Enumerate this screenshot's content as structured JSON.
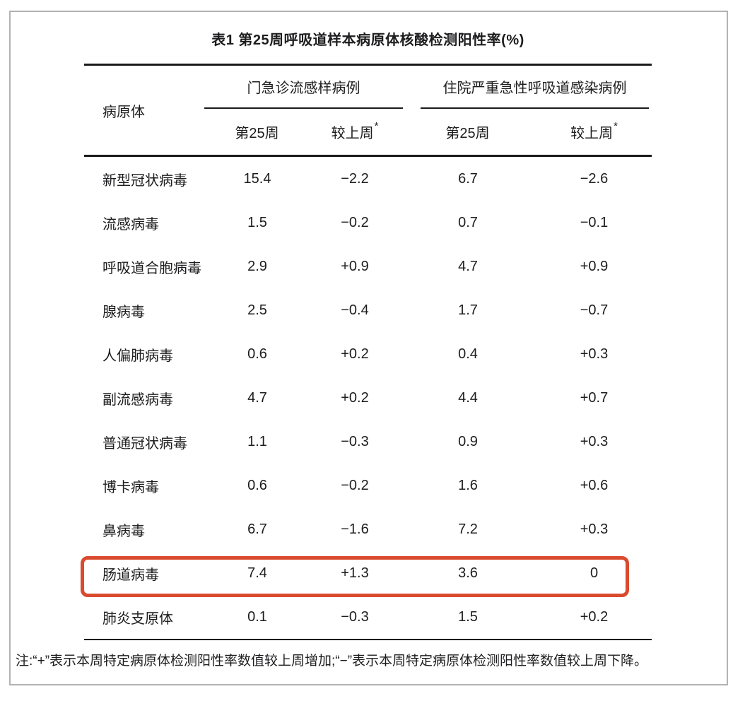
{
  "title": "表1 第25周呼吸道样本病原体核酸检测阳性率(%)",
  "table": {
    "pathogen_header": "病原体",
    "groups": [
      {
        "label": "门急诊流感样病例"
      },
      {
        "label": "住院严重急性呼吸道感染病例"
      }
    ],
    "subheaders": [
      {
        "label": "第25周",
        "sup": ""
      },
      {
        "label": "较上周",
        "sup": "*"
      },
      {
        "label": "第25周",
        "sup": ""
      },
      {
        "label": "较上周",
        "sup": "*"
      }
    ],
    "rows": [
      {
        "pathogen": "新型冠状病毒",
        "values": [
          "15.4",
          "−2.2",
          "6.7",
          "−2.6"
        ],
        "highlighted": false
      },
      {
        "pathogen": "流感病毒",
        "values": [
          "1.5",
          "−0.2",
          "0.7",
          "−0.1"
        ],
        "highlighted": false
      },
      {
        "pathogen": "呼吸道合胞病毒",
        "values": [
          "2.9",
          "+0.9",
          "4.7",
          "+0.9"
        ],
        "highlighted": false
      },
      {
        "pathogen": "腺病毒",
        "values": [
          "2.5",
          "−0.4",
          "1.7",
          "−0.7"
        ],
        "highlighted": false
      },
      {
        "pathogen": "人偏肺病毒",
        "values": [
          "0.6",
          "+0.2",
          "0.4",
          "+0.3"
        ],
        "highlighted": false
      },
      {
        "pathogen": "副流感病毒",
        "values": [
          "4.7",
          "+0.2",
          "4.4",
          "+0.7"
        ],
        "highlighted": false
      },
      {
        "pathogen": "普通冠状病毒",
        "values": [
          "1.1",
          "−0.3",
          "0.9",
          "+0.3"
        ],
        "highlighted": false
      },
      {
        "pathogen": "博卡病毒",
        "values": [
          "0.6",
          "−0.2",
          "1.6",
          "+0.6"
        ],
        "highlighted": false
      },
      {
        "pathogen": "鼻病毒",
        "values": [
          "6.7",
          "−1.6",
          "7.2",
          "+0.3"
        ],
        "highlighted": false
      },
      {
        "pathogen": "肠道病毒",
        "values": [
          "7.4",
          "+1.3",
          "3.6",
          "0"
        ],
        "highlighted": true
      },
      {
        "pathogen": "肺炎支原体",
        "values": [
          "0.1",
          "−0.3",
          "1.5",
          "+0.2"
        ],
        "highlighted": false
      }
    ]
  },
  "note": "注:“+”表示本周特定病原体检测阳性率数值较上周增加;“−”表示本周特定病原体检测阳性率数值较上周下降。",
  "colors": {
    "highlight_box": "#da4a2e",
    "rule": "#1a1a1a",
    "text": "#1d1d1f",
    "frame_border": "#b3b3b3"
  }
}
